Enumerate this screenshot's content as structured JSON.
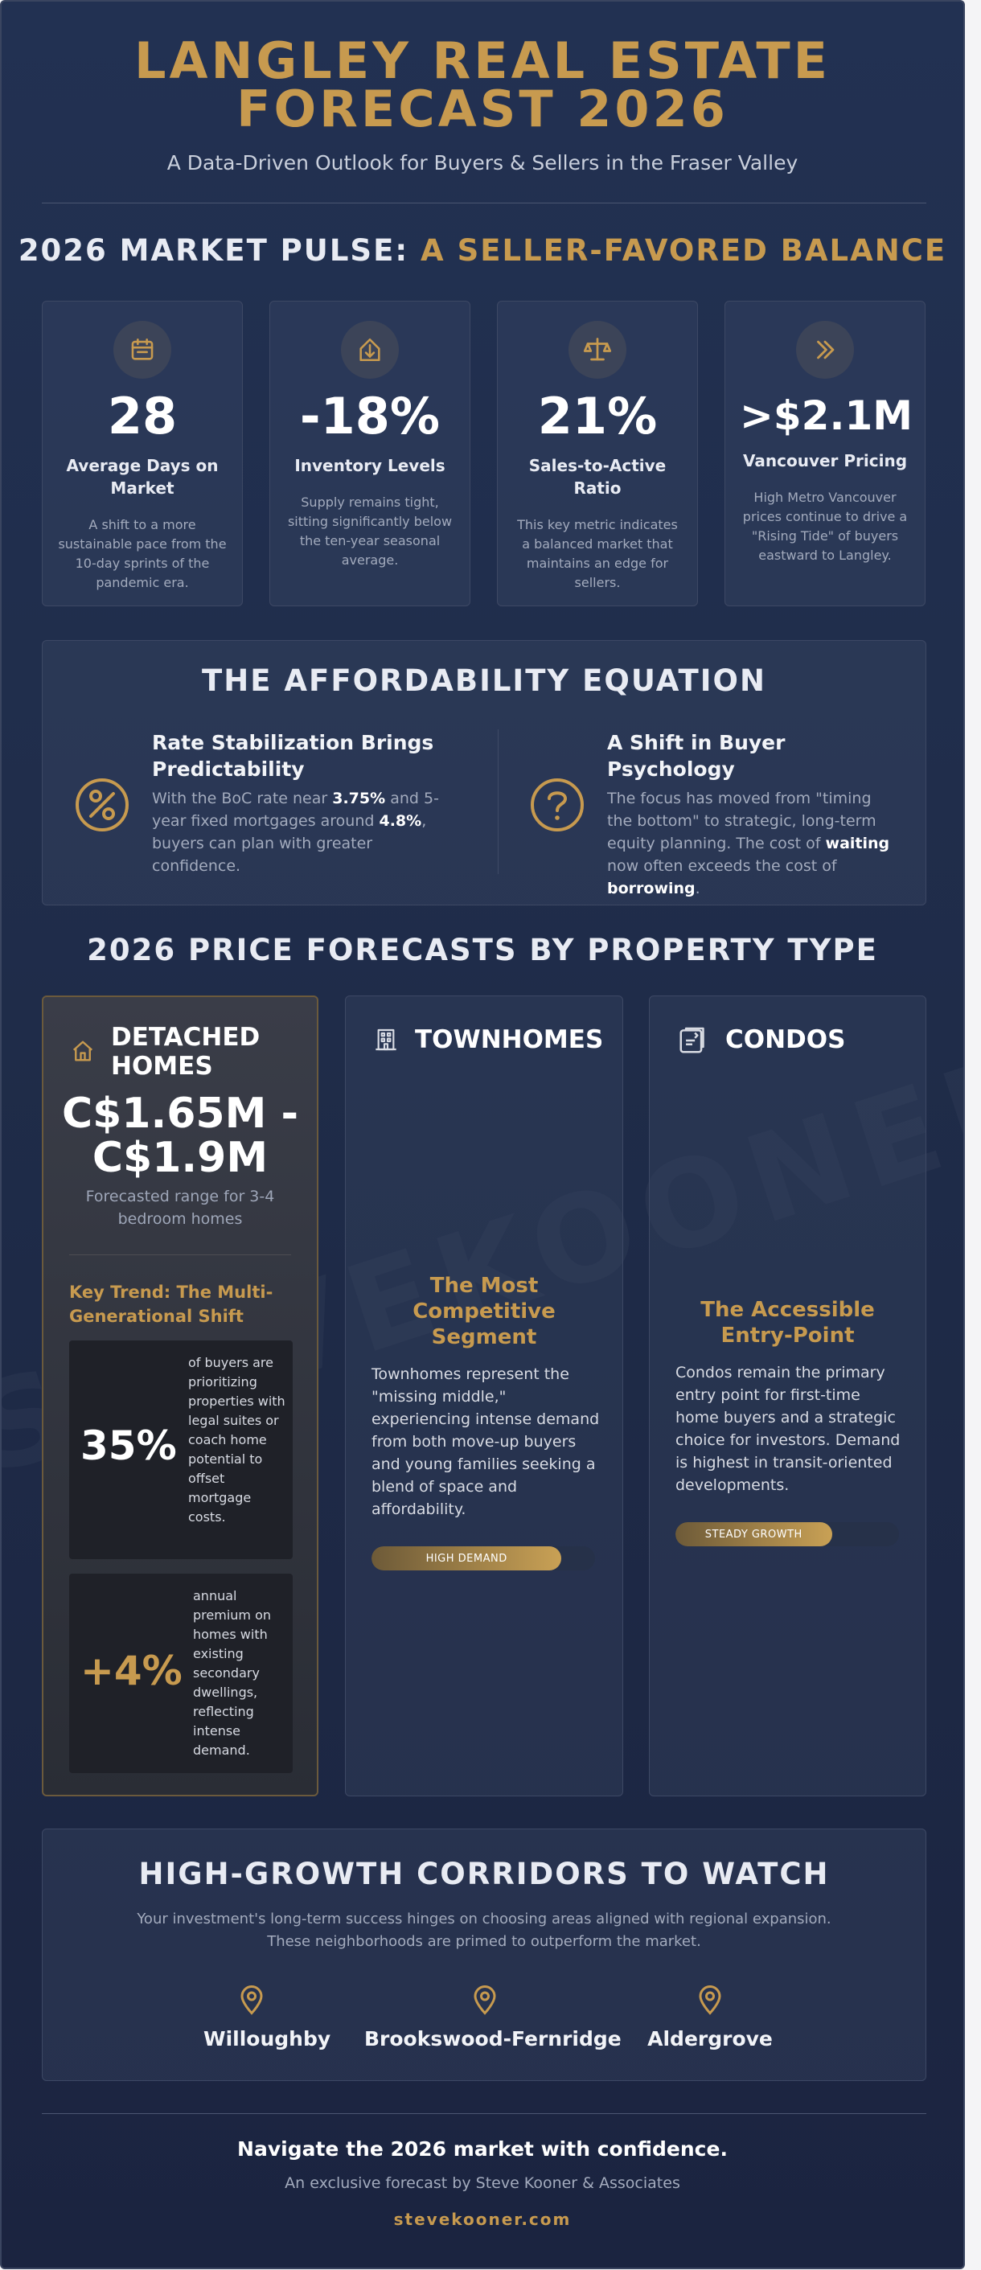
{
  "header": {
    "title_line1": "LANGLEY REAL ESTATE",
    "title_line2": "FORECAST 2026",
    "subtitle": "A Data-Driven Outlook for Buyers & Sellers in the Fraser Valley"
  },
  "pulse": {
    "title_prefix": "2026 MARKET PULSE:",
    "title_highlight": "A SELLER-FAVORED BALANCE",
    "cards": [
      {
        "icon": "calendar-icon",
        "value": "28",
        "label": "Average Days on Market",
        "desc": "A shift to a more sustainable pace from the 10-day sprints of the pandemic era."
      },
      {
        "icon": "house-down-icon",
        "value": "-18%",
        "label": "Inventory Levels",
        "desc": "Supply remains tight, sitting significantly below the ten-year seasonal average."
      },
      {
        "icon": "scale-icon",
        "value": "21%",
        "label": "Sales-to-Active Ratio",
        "desc": "This key metric indicates a balanced market that maintains an edge for sellers."
      },
      {
        "icon": "chevrons-right-icon",
        "value": ">$2.1M",
        "label": "Vancouver Pricing",
        "desc": "High Metro Vancouver prices continue to drive a \"Rising Tide\" of buyers eastward to Langley."
      }
    ]
  },
  "affordability": {
    "title": "THE AFFORDABILITY EQUATION",
    "left": {
      "icon": "rate-icon",
      "heading": "Rate Stabilization Brings Predictability",
      "text_a": "With the BoC rate near ",
      "bold_a": "3.75%",
      "text_b": " and 5-year fixed mortgages around ",
      "bold_b": "4.8%",
      "text_c": ", buyers can plan with greater confidence."
    },
    "right": {
      "icon": "question-icon",
      "heading": "A Shift in Buyer Psychology",
      "text_a": "The focus has moved from \"timing the bottom\" to strategic, long-term equity planning. The cost of ",
      "bold_a": "waiting",
      "text_b": " now often exceeds the cost of ",
      "bold_b": "borrowing",
      "text_c": "."
    }
  },
  "forecasts": {
    "title": "2026 PRICE FORECASTS BY PROPERTY TYPE",
    "detached": {
      "icon": "home-icon",
      "title_line1": "DETACHED",
      "title_line2": "HOMES",
      "price_line1": "C$1.65M -",
      "price_line2": "C$1.9M",
      "subtitle": "Forecasted range for 3-4 bedroom homes",
      "key_trend": "Key Trend: The Multi-Generational Shift",
      "stat1_value": "35%",
      "stat1_text": "of buyers are prioritizing properties with legal suites or coach home potential to offset mortgage costs.",
      "stat2_value": "+4%",
      "stat2_text": "annual premium on homes with existing secondary dwellings, reflecting intense demand."
    },
    "townhomes": {
      "icon": "building-icon",
      "title": "TOWNHOMES",
      "tagline": "The Most Competitive Segment",
      "desc": "Townhomes represent the \"missing middle,\" experiencing intense demand from both move-up buyers and young families seeking a blend of space and affordability.",
      "demand_label": "HIGH DEMAND",
      "demand_level": 0.85
    },
    "condos": {
      "icon": "condo-icon",
      "title": "CONDOS",
      "tagline": "The Accessible Entry-Point",
      "desc": "Condos remain the primary entry point for first-time home buyers and a strategic choice for investors. Demand is highest in transit-oriented developments.",
      "demand_label": "STEADY GROWTH",
      "demand_level": 0.7
    }
  },
  "corridors": {
    "title": "HIGH-GROWTH CORRIDORS TO WATCH",
    "text_line1": "Your investment's long-term success hinges on choosing areas aligned with regional expansion.",
    "text_line2": "These neighborhoods are primed to outperform the market.",
    "places": [
      {
        "icon": "map-pin-icon",
        "name": "Willoughby"
      },
      {
        "icon": "map-pin-icon",
        "name": "Brookswood-Fernridge"
      },
      {
        "icon": "map-pin-icon",
        "name": "Aldergrove"
      }
    ]
  },
  "footer": {
    "main": "Navigate the 2026 market with confidence.",
    "sub": "An exclusive forecast by Steve Kooner & Associates",
    "link": "stevekooner.com"
  },
  "watermark": "STEVEKOONER.COM",
  "colors": {
    "accent": "#c79a4f",
    "background": "#1f2c49",
    "card": "#2e3a55"
  }
}
